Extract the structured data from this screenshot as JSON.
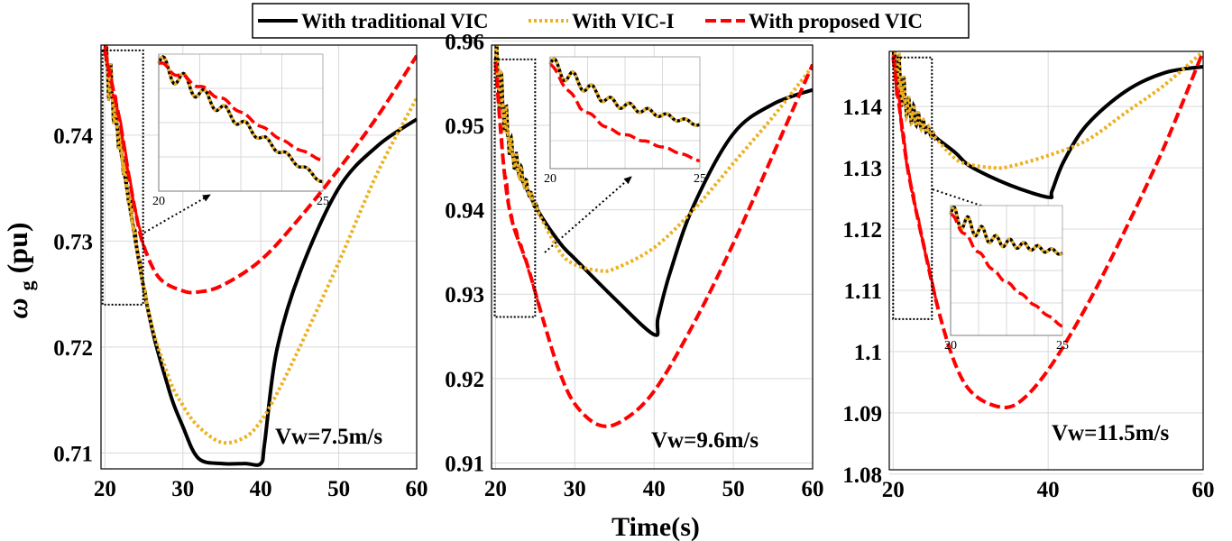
{
  "chart_data": {
    "type": "line",
    "xlabel": "Time(s)",
    "ylabel_symbol": "ω",
    "ylabel_sub": "g",
    "ylabel_unit": "(pu)",
    "legend_position": "top-center",
    "series_style": [
      {
        "name": "With traditional VIC",
        "color": "#000000",
        "dash": "solid"
      },
      {
        "name": "With VIC-I",
        "color": "#EDB120",
        "dash": "dotted"
      },
      {
        "name": "With proposed VIC",
        "color": "#FF0000",
        "dash": "dashed"
      }
    ],
    "legend": {
      "traditional": "With traditional VIC",
      "vic1": "With VIC-I",
      "proposed": "With proposed VIC"
    },
    "panels": [
      {
        "annotation": "Vw=7.5m/s",
        "xlim": [
          19.5,
          60
        ],
        "ylim": [
          0.7085,
          0.7485
        ],
        "xticks": [
          20,
          30,
          40,
          50,
          60
        ],
        "xtick_labels": [
          "20",
          "30",
          "40",
          "50",
          "60"
        ],
        "yticks": [
          0.71,
          0.72,
          0.73,
          0.74
        ],
        "ytick_labels": [
          "0.71",
          "0.72",
          "0.73",
          "0.74"
        ],
        "zoom_box": {
          "x": [
            19.7,
            24.9
          ],
          "y": [
            0.724,
            0.748
          ]
        },
        "inset_xticks": [
          "20",
          "25"
        ],
        "series": [
          {
            "name": "With traditional VIC",
            "x": [
              20,
              25,
              28,
              30,
              32,
              35,
              38,
              40,
              40.5,
              42,
              45,
              50,
              55,
              60
            ],
            "y": [
              0.748,
              0.7255,
              0.7165,
              0.7125,
              0.7095,
              0.709,
              0.709,
              0.709,
              0.711,
              0.7195,
              0.727,
              0.735,
              0.739,
              0.7415
            ]
          },
          {
            "name": "With VIC-I",
            "x": [
              20,
              25,
              28,
              30,
              32,
              35,
              38,
              40,
              42,
              45,
              50,
              55,
              60
            ],
            "y": [
              0.748,
              0.7255,
              0.7175,
              0.7145,
              0.7125,
              0.711,
              0.7115,
              0.713,
              0.7155,
              0.72,
              0.728,
              0.7365,
              0.7435
            ]
          },
          {
            "name": "With proposed VIC",
            "x": [
              20,
              21,
              22,
              23,
              24,
              25,
              27,
              30,
              32,
              35,
              40,
              45,
              50,
              55,
              60
            ],
            "y": [
              0.748,
              0.7445,
              0.741,
              0.7365,
              0.7325,
              0.7295,
              0.7265,
              0.7253,
              0.7252,
              0.7258,
              0.7282,
              0.7322,
              0.7368,
              0.7418,
              0.7475
            ]
          }
        ]
      },
      {
        "annotation": "Vw=9.6m/s",
        "xlim": [
          19.5,
          60
        ],
        "ylim": [
          0.9093,
          0.9595
        ],
        "xticks": [
          20,
          30,
          40,
          50,
          60
        ],
        "xtick_labels": [
          "20",
          "30",
          "40",
          "50",
          "60"
        ],
        "yticks": [
          0.91,
          0.92,
          0.93,
          0.94,
          0.95,
          0.96
        ],
        "ytick_labels": [
          "0.91",
          "0.92",
          "0.93",
          "0.94",
          "0.95",
          "0.96"
        ],
        "zoom_box": {
          "x": [
            19.9,
            25
          ],
          "y": [
            0.9273,
            0.9578
          ]
        },
        "inset_xticks": [
          "20",
          "25"
        ],
        "series": [
          {
            "name": "With traditional VIC",
            "x": [
              20,
              22,
              25,
              28,
              30,
              35,
              40,
              40.5,
              42,
              45,
              50,
              55,
              60
            ],
            "y": [
              0.9575,
              0.947,
              0.9405,
              0.9362,
              0.9342,
              0.9295,
              0.9252,
              0.9272,
              0.9325,
              0.9405,
              0.949,
              0.9525,
              0.9542
            ]
          },
          {
            "name": "With VIC-I",
            "x": [
              20,
              22,
              25,
              28,
              30,
              33,
              35,
              40,
              45,
              50,
              55,
              60
            ],
            "y": [
              0.9575,
              0.947,
              0.9405,
              0.9352,
              0.9335,
              0.9328,
              0.933,
              0.9355,
              0.94,
              0.9455,
              0.951,
              0.957
            ]
          },
          {
            "name": "With proposed VIC",
            "x": [
              20,
              21,
              22,
              24,
              26,
              28,
              30,
              33,
              36,
              40,
              45,
              50,
              55,
              60
            ],
            "y": [
              0.9575,
              0.9455,
              0.939,
              0.9335,
              0.927,
              0.921,
              0.917,
              0.9145,
              0.915,
              0.9185,
              0.9265,
              0.936,
              0.9465,
              0.9572
            ]
          }
        ]
      },
      {
        "annotation": "Vw=11.5m/s",
        "xlim": [
          19.5,
          60
        ],
        "ylim": [
          1.0807,
          1.149
        ],
        "xticks": [
          20,
          40,
          60
        ],
        "xtick_labels": [
          "20",
          "40",
          "60"
        ],
        "yticks": [
          1.08,
          1.09,
          1.1,
          1.11,
          1.12,
          1.13,
          1.14
        ],
        "ytick_labels": [
          "1.08",
          "1.09",
          "1.1",
          "1.11",
          "1.12",
          "1.13",
          "1.14"
        ],
        "zoom_box": {
          "x": [
            20,
            25
          ],
          "y": [
            1.1053,
            1.148
          ]
        },
        "inset_xticks": [
          "20",
          "25"
        ],
        "series": [
          {
            "name": "With traditional VIC",
            "x": [
              20,
              22,
              25,
              28,
              30,
              35,
              40,
              40.5,
              42,
              45,
              50,
              55,
              60
            ],
            "y": [
              1.148,
              1.1395,
              1.1355,
              1.1325,
              1.1302,
              1.1272,
              1.1252,
              1.1262,
              1.131,
              1.137,
              1.1425,
              1.1455,
              1.1465
            ]
          },
          {
            "name": "With VIC-I",
            "x": [
              20,
              22,
              25,
              28,
              30,
              33,
              35,
              40,
              45,
              50,
              55,
              60
            ],
            "y": [
              1.148,
              1.1395,
              1.1355,
              1.1315,
              1.1305,
              1.13,
              1.1302,
              1.132,
              1.1345,
              1.139,
              1.1435,
              1.149
            ]
          },
          {
            "name": "With proposed VIC",
            "x": [
              20,
              21,
              22,
              24,
              26,
              28,
              30,
              33,
              36,
              40,
              45,
              50,
              55,
              60
            ],
            "y": [
              1.148,
              1.138,
              1.129,
              1.117,
              1.106,
              1.098,
              1.0935,
              1.0912,
              1.0915,
              1.097,
              1.1075,
              1.12,
              1.1335,
              1.149
            ]
          }
        ]
      }
    ]
  }
}
